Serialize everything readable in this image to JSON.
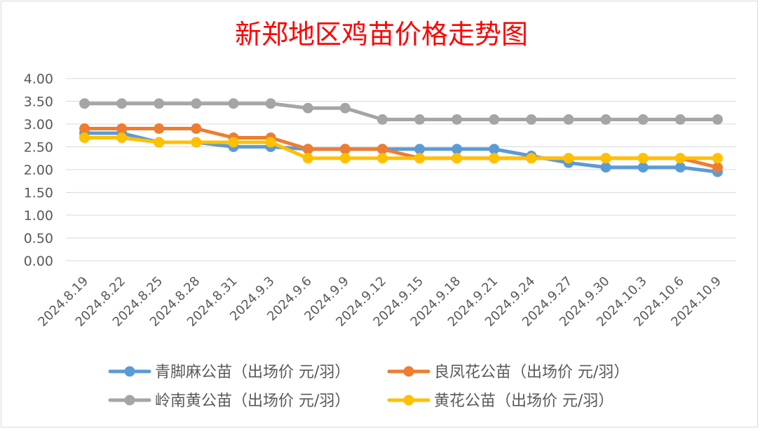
{
  "chart_data": {
    "type": "line",
    "title": "新郑地区鸡苗价格走势图",
    "xlabel": "",
    "ylabel": "",
    "ylim": [
      0,
      4
    ],
    "ytick_labels": [
      "0.00",
      "0.50",
      "1.00",
      "1.50",
      "2.00",
      "2.50",
      "3.00",
      "3.50",
      "4.00"
    ],
    "categories": [
      "2024.8.19",
      "2024.8.22",
      "2024.8.25",
      "2024.8.28",
      "2024.8.31",
      "2024.9.3",
      "2024.9.6",
      "2024.9.9",
      "2024.9.12",
      "2024.9.15",
      "2024.9.18",
      "2024.9.21",
      "2024.9.24",
      "2024.9.27",
      "2024.9.30",
      "2024.10.3",
      "2024.10.6",
      "2024.10.9"
    ],
    "grid": true,
    "legend_position": "bottom",
    "series": [
      {
        "name": "青脚麻公苗（出场价 元/羽）",
        "color": "#5b9bd5",
        "values": [
          2.8,
          2.8,
          2.6,
          2.6,
          2.5,
          2.5,
          2.45,
          2.45,
          2.45,
          2.45,
          2.45,
          2.45,
          2.3,
          2.15,
          2.05,
          2.05,
          2.05,
          1.95
        ]
      },
      {
        "name": "良凤花公苗（出场价 元/羽）",
        "color": "#ed7d31",
        "values": [
          2.9,
          2.9,
          2.9,
          2.9,
          2.7,
          2.7,
          2.45,
          2.45,
          2.45,
          2.25,
          2.25,
          2.25,
          2.25,
          2.25,
          2.25,
          2.25,
          2.25,
          2.05
        ]
      },
      {
        "name": "岭南黄公苗（出场价 元/羽）",
        "color": "#a5a5a5",
        "values": [
          3.45,
          3.45,
          3.45,
          3.45,
          3.45,
          3.45,
          3.35,
          3.35,
          3.1,
          3.1,
          3.1,
          3.1,
          3.1,
          3.1,
          3.1,
          3.1,
          3.1,
          3.1
        ]
      },
      {
        "name": "黄花公苗（出场价 元/羽）",
        "color": "#ffc000",
        "values": [
          2.7,
          2.7,
          2.6,
          2.6,
          2.6,
          2.6,
          2.25,
          2.25,
          2.25,
          2.25,
          2.25,
          2.25,
          2.25,
          2.25,
          2.25,
          2.25,
          2.25,
          2.25
        ]
      }
    ]
  }
}
